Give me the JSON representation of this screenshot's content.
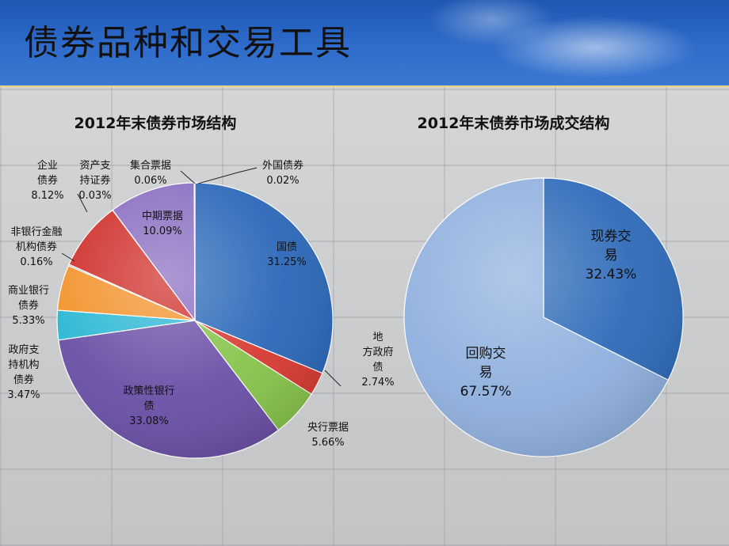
{
  "slide": {
    "title": "债券品种和交易工具"
  },
  "chart_data": [
    {
      "type": "pie",
      "title": "2012年末债券市场结构",
      "slices": [
        {
          "name": "国债",
          "value": 31.25,
          "value_label": "31.25%",
          "lines": [
            "国债"
          ],
          "color": "#2b67b8"
        },
        {
          "name": "地方政府债",
          "value": 2.74,
          "value_label": "2.74%",
          "lines": [
            "地",
            "方政府",
            "债"
          ],
          "color": "#d73a32"
        },
        {
          "name": "央行票据",
          "value": 5.66,
          "value_label": "5.66%",
          "lines": [
            "央行票据"
          ],
          "color": "#86c34b"
        },
        {
          "name": "政策性银行债",
          "value": 33.08,
          "value_label": "33.08%",
          "lines": [
            "政策性银行",
            "债"
          ],
          "color": "#6b4fa6"
        },
        {
          "name": "政府支持机构债券",
          "value": 3.47,
          "value_label": "3.47%",
          "lines": [
            "政府支",
            "持机构",
            "债券"
          ],
          "color": "#2ab7d4"
        },
        {
          "name": "商业银行债券",
          "value": 5.33,
          "value_label": "5.33%",
          "lines": [
            "商业银行",
            "债券"
          ],
          "color": "#f2922a"
        },
        {
          "name": "非银行金融机构债券",
          "value": 0.16,
          "value_label": "0.16%",
          "lines": [
            "非银行金融",
            "机构债券"
          ],
          "color": "#4d7fbf"
        },
        {
          "name": "企业债券",
          "value": 8.12,
          "value_label": "8.12%",
          "lines": [
            "企业",
            "债券"
          ],
          "color": "#cf2d28"
        },
        {
          "name": "资产支持证券",
          "value": 0.03,
          "value_label": "0.03%",
          "lines": [
            "资产支",
            "持证券"
          ],
          "color": "#9ac255"
        },
        {
          "name": "中期票据",
          "value": 10.09,
          "value_label": "10.09%",
          "lines": [
            "中期票据"
          ],
          "color": "#8a6cc0"
        },
        {
          "name": "集合票据",
          "value": 0.06,
          "value_label": "0.06%",
          "lines": [
            "集合票据"
          ],
          "color": "#33b4cf"
        },
        {
          "name": "外国债券",
          "value": 0.02,
          "value_label": "0.02%",
          "lines": [
            "外国债券"
          ],
          "color": "#f5a040"
        }
      ]
    },
    {
      "type": "pie",
      "title": "2012年末债券市场成交结构",
      "slices": [
        {
          "name": "现券交易",
          "value": 32.43,
          "value_label": "32.43%",
          "lines": [
            "现券交",
            "易"
          ],
          "color": "#2e6ab8"
        },
        {
          "name": "回购交易",
          "value": 67.57,
          "value_label": "67.57%",
          "lines": [
            "回购交",
            "易"
          ],
          "color": "#8fb0de"
        }
      ]
    }
  ]
}
